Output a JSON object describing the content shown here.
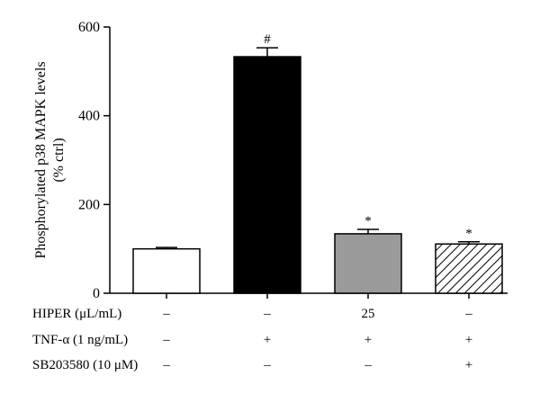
{
  "chart_data": {
    "type": "bar",
    "ylabel_line1": "Phosphorylated p38 MAPK levels",
    "ylabel_line2": "(% ctrl)",
    "ylim": [
      0,
      600
    ],
    "yticks": [
      "0",
      "200",
      "400",
      "600"
    ],
    "bars": [
      {
        "value": 100,
        "error": 3,
        "annotation": "",
        "fill": "#ffffff",
        "pattern": "none"
      },
      {
        "value": 533,
        "error": 20,
        "annotation": "#",
        "fill": "#000000",
        "pattern": "none"
      },
      {
        "value": 134,
        "error": 10,
        "annotation": "*",
        "fill": "#9a9a9a",
        "pattern": "none"
      },
      {
        "value": 111,
        "error": 5,
        "annotation": "*",
        "fill": "#ffffff",
        "pattern": "hatch"
      }
    ],
    "conditions": [
      {
        "label": "HIPER (μL/mL)",
        "values": [
          "–",
          "–",
          "25",
          "–"
        ]
      },
      {
        "label": "TNF-α (1 ng/mL)",
        "values": [
          "–",
          "+",
          "+",
          "+"
        ]
      },
      {
        "label": "SB203580 (10 μM)",
        "values": [
          "–",
          "–",
          "–",
          "+"
        ]
      }
    ],
    "grid": false,
    "legend": "none"
  }
}
